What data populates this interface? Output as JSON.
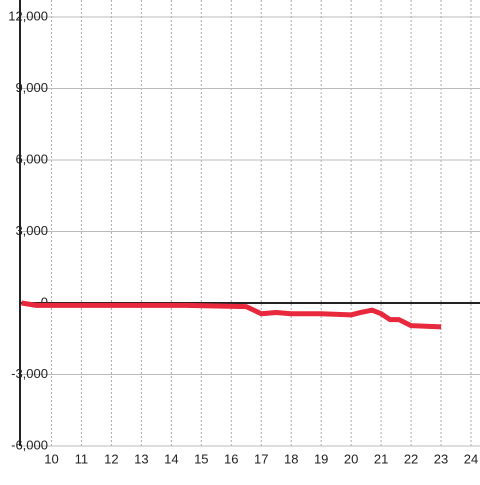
{
  "chart_data": {
    "type": "line",
    "x": [
      9,
      9.5,
      14.5,
      16.5,
      17,
      17.5,
      18,
      19,
      20,
      20.3,
      20.7,
      21,
      21.3,
      21.6,
      22,
      23
    ],
    "series": [
      {
        "color": "#e8283c",
        "values": [
          0,
          -100,
          -100,
          -150,
          -450,
          -400,
          -450,
          -450,
          -500,
          -400,
          -300,
          -450,
          -700,
          -700,
          -950,
          -1000
        ]
      }
    ],
    "xlim": [
      8.95,
      24.3
    ],
    "xticks": [
      10,
      11,
      12,
      13,
      14,
      15,
      16,
      17,
      18,
      19,
      20,
      21,
      22,
      23,
      24
    ],
    "ylim": [
      -6000,
      12000
    ],
    "yticks": [
      {
        "value": -6000,
        "label": "-6,000"
      },
      {
        "value": -3000,
        "label": "-3,000"
      },
      0,
      {
        "value": 3000,
        "label": "3,000"
      },
      {
        "value": 6000,
        "label": "6,000"
      },
      {
        "value": 9000,
        "label": "9,000"
      },
      {
        "value": 12000,
        "label": "12,000"
      }
    ],
    "grid": true
  }
}
